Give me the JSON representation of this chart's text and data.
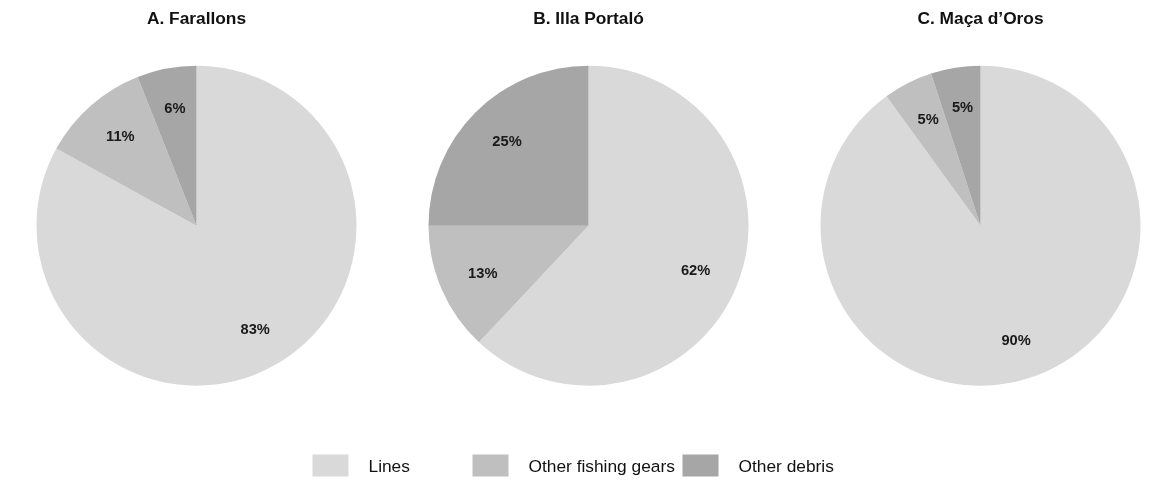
{
  "chart_data": [
    {
      "type": "pie",
      "title": "A. Farallons",
      "categories": [
        "Lines",
        "Other fishing gears",
        "Other debris"
      ],
      "values": [
        83,
        11,
        6
      ],
      "value_labels": [
        "83%",
        "11%",
        "6%"
      ],
      "colors": [
        "#d9d9d9",
        "#bfbfbf",
        "#a6a6a6"
      ],
      "legend": "bottom"
    },
    {
      "type": "pie",
      "title": "B. Illa Portaló",
      "categories": [
        null,
        null,
        null
      ],
      "values": [
        62,
        13,
        25
      ],
      "value_labels": [
        "62%",
        "13%",
        "25%"
      ],
      "colors": [
        "#d9d9d9",
        "#bfbfbf",
        "#a6a6a6"
      ]
    },
    {
      "type": "pie",
      "title": "C. Maça d’Oros",
      "categories": [
        null,
        null,
        null
      ],
      "values": [
        90,
        5,
        5
      ],
      "value_labels": [
        "90%",
        "5%",
        "5%"
      ],
      "colors": [
        "#d9d9d9",
        "#bfbfbf",
        "#a6a6a6"
      ]
    }
  ]
}
